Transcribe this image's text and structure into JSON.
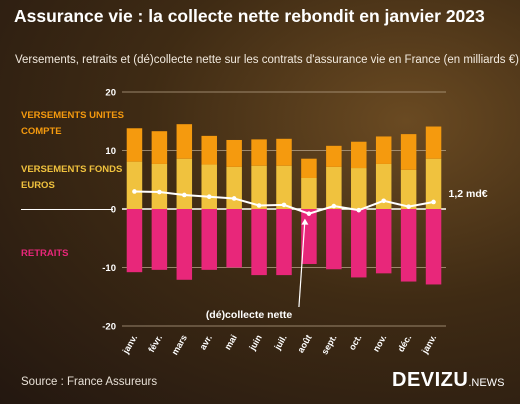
{
  "title": "Assurance vie : la collecte nette rebondit en janvier 2023",
  "subtitle": "Versements, retraits et (dé)collecte nette sur les contrats d'assurance vie en France (en milliards €)",
  "legend": {
    "unites_compte": "VERSEMENTS UNITES COMPTE",
    "fonds_euros": "VERSEMENTS FONDS EUROS",
    "retraits": "RETRAITS"
  },
  "source": "Source : France Assureurs",
  "brand": {
    "name": "DEVIZU",
    "suffix": ".NEWS"
  },
  "colors": {
    "unites_compte": "#f59a0e",
    "fonds_euros": "#f0c23e",
    "retraits": "#e8277a",
    "net_line": "#ffffff"
  },
  "chart_data": {
    "type": "bar",
    "title": "Assurance vie : la collecte nette rebondit en janvier 2023",
    "categories": [
      "janv.",
      "févr.",
      "mars",
      "avr.",
      "mai",
      "juin",
      "juil.",
      "août",
      "sept.",
      "oct.",
      "nov.",
      "déc.",
      "janv."
    ],
    "series": [
      {
        "name": "VERSEMENTS FONDS EUROS",
        "stack": "versements",
        "values": [
          8.1,
          7.7,
          8.6,
          7.6,
          7.2,
          7.4,
          7.4,
          5.3,
          7.2,
          7.0,
          7.7,
          6.7,
          8.6
        ]
      },
      {
        "name": "VERSEMENTS UNITES COMPTE",
        "stack": "versements",
        "values": [
          5.7,
          5.6,
          5.9,
          4.9,
          4.6,
          4.5,
          4.6,
          3.3,
          3.6,
          4.5,
          4.7,
          6.1,
          5.5
        ]
      },
      {
        "name": "RETRAITS",
        "values": [
          -10.8,
          -10.4,
          -12.1,
          -10.4,
          -10.0,
          -11.3,
          -11.3,
          -9.4,
          -10.3,
          -11.7,
          -11.0,
          -12.4,
          -12.9
        ]
      },
      {
        "name": "(dé)collecte nette",
        "type": "line",
        "values": [
          3.0,
          2.9,
          2.4,
          2.1,
          1.8,
          0.6,
          0.7,
          -0.8,
          0.5,
          -0.2,
          1.4,
          0.4,
          1.2
        ]
      }
    ],
    "ylim": [
      -20,
      20
    ],
    "yticks": [
      -20,
      -10,
      0,
      10,
      20
    ],
    "grid": true,
    "annotations": [
      {
        "text": "(dé)collecte nette",
        "target_index": 7
      },
      {
        "text": "1,2 md€",
        "target_index": 12
      }
    ]
  }
}
